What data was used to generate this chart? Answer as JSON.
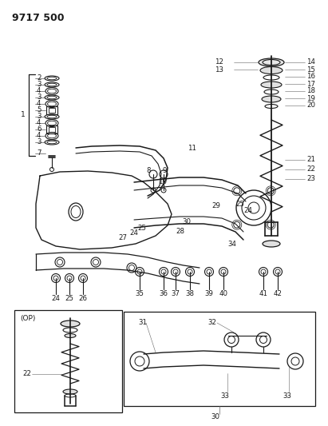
{
  "title": "9717 500",
  "bg_color": "#ffffff",
  "lc": "#1a1a1a",
  "fig_width": 4.11,
  "fig_height": 5.33,
  "dpi": 100
}
